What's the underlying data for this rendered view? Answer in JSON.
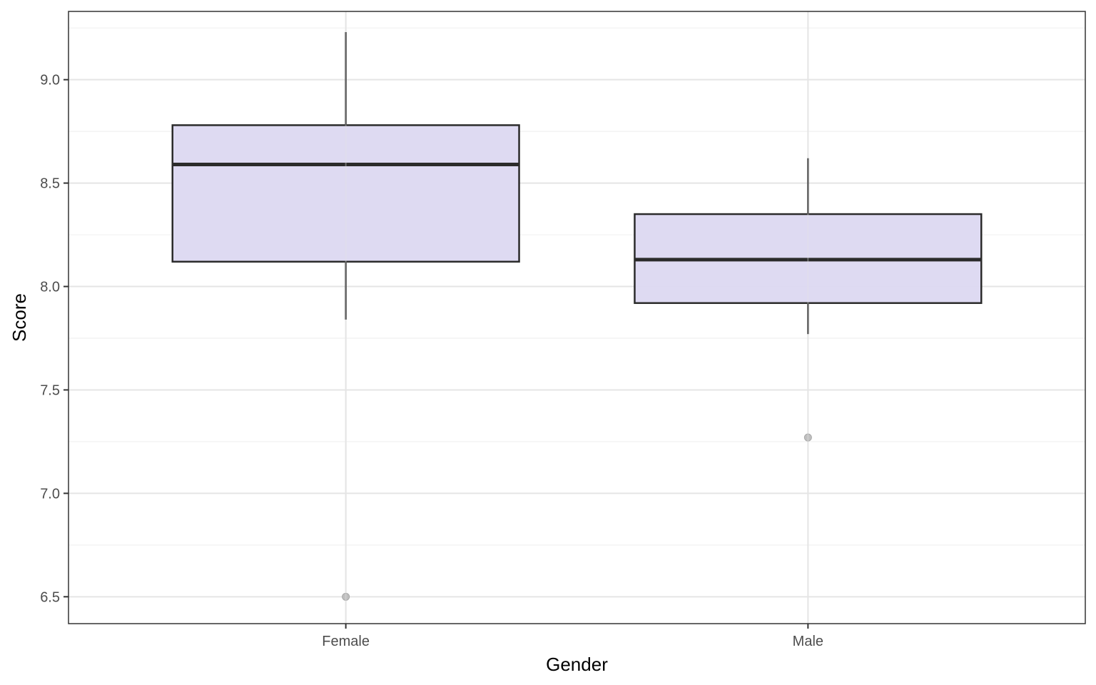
{
  "chart_data": {
    "type": "box",
    "title": "",
    "xlabel": "Gender",
    "ylabel": "Score",
    "categories": [
      "Female",
      "Male"
    ],
    "boxes": [
      {
        "category": "Female",
        "whisker_low": 7.84,
        "q1": 8.12,
        "median": 8.59,
        "q3": 8.78,
        "whisker_high": 9.23,
        "outliers": [
          6.5
        ]
      },
      {
        "category": "Male",
        "whisker_low": 7.77,
        "q1": 7.92,
        "median": 8.13,
        "q3": 8.35,
        "whisker_high": 8.62,
        "outliers": [
          7.27
        ]
      }
    ],
    "ylim": [
      6.37,
      9.33
    ],
    "yticks": [
      6.5,
      7.0,
      7.5,
      8.0,
      8.5,
      9.0
    ],
    "ytick_labels": [
      "6.5",
      "7.0",
      "7.5",
      "8.0",
      "8.5",
      "9.0"
    ],
    "grid": true,
    "legend": "none",
    "colors": {
      "box_fill": "#dcd8f1",
      "box_stroke": "#2b2b2b",
      "outlier": "#bfbfbf",
      "grid_major": "#e5e5e5",
      "grid_minor": "#f0f0f0",
      "panel_border": "#333333"
    }
  }
}
